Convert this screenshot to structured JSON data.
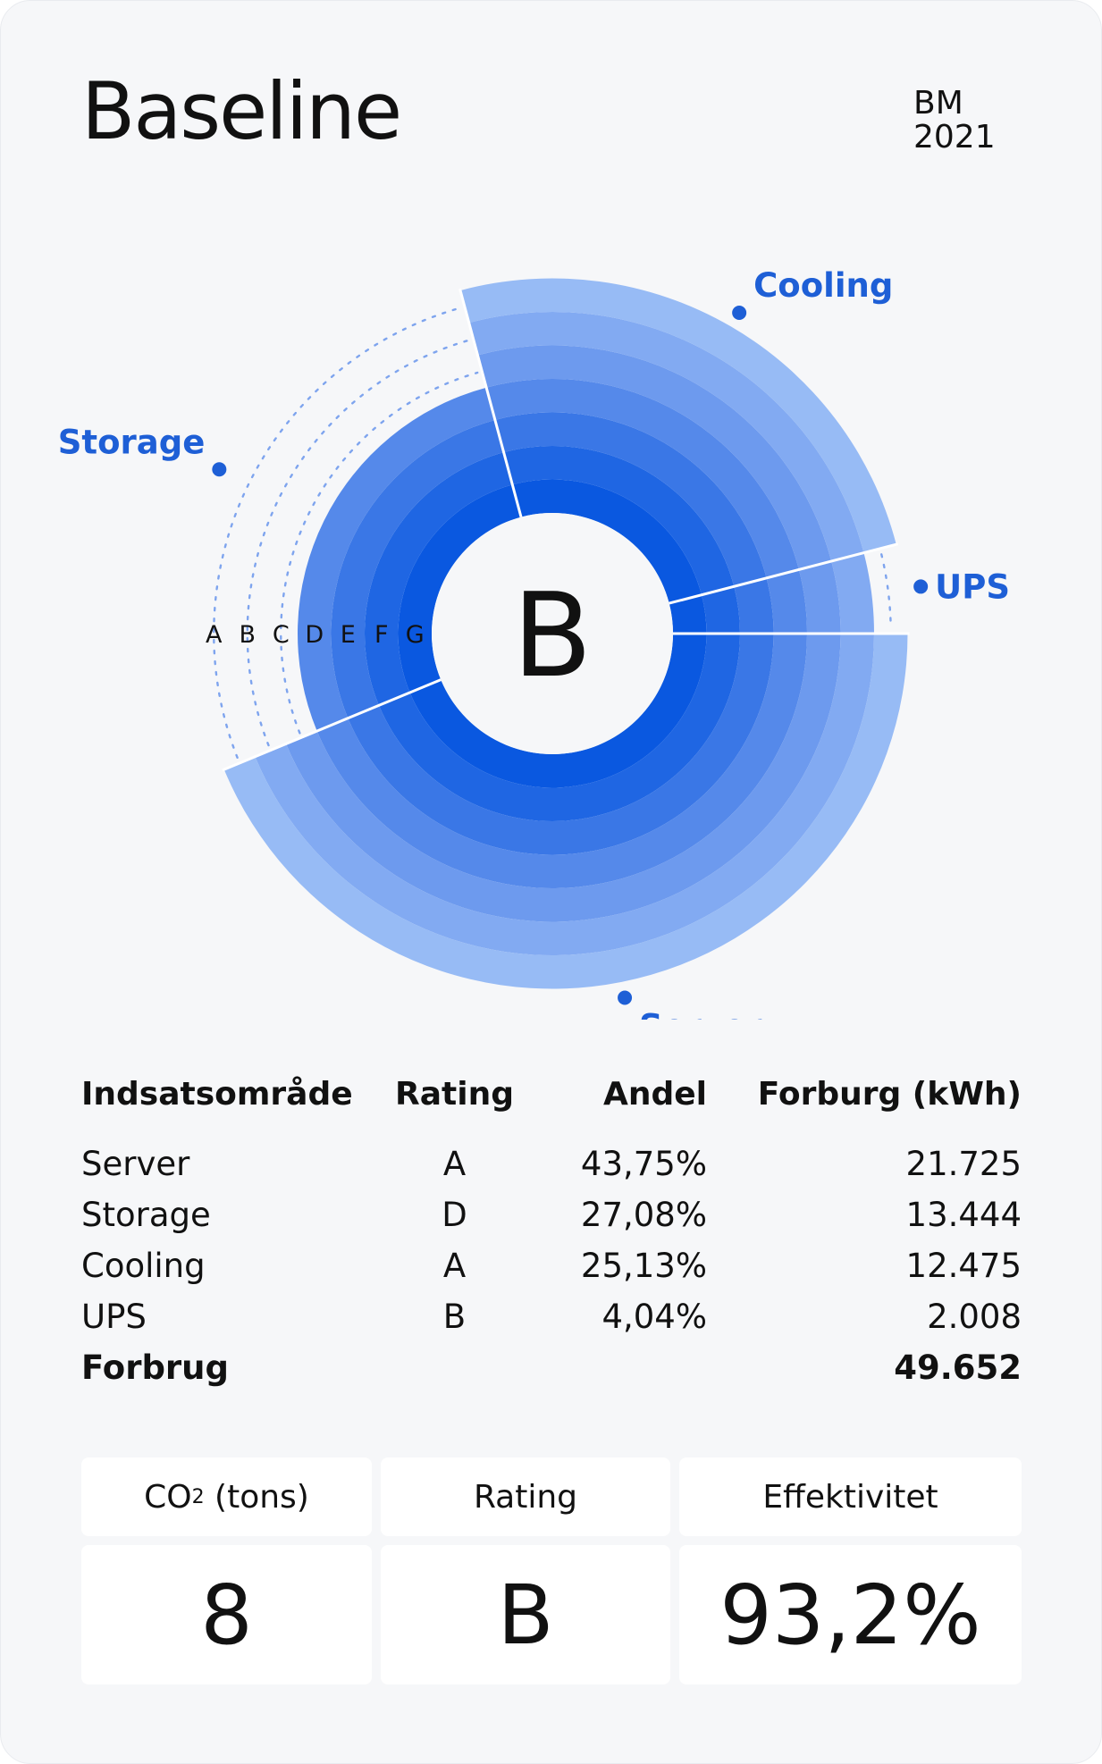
{
  "header": {
    "title": "Baseline",
    "code_line1": "BM",
    "code_line2": "2021"
  },
  "chart_data": {
    "type": "radial-bar",
    "center_rating": "B",
    "rating_scale": [
      "A",
      "B",
      "C",
      "D",
      "E",
      "F",
      "G"
    ],
    "segments": [
      {
        "name": "Server",
        "rating": "A",
        "share": 43.75
      },
      {
        "name": "Storage",
        "rating": "D",
        "share": 27.08
      },
      {
        "name": "Cooling",
        "rating": "A",
        "share": 25.13
      },
      {
        "name": "UPS",
        "rating": "B",
        "share": 4.04
      }
    ],
    "colors": {
      "label": "#1e5fd6",
      "rings": [
        "#97bbf5",
        "#82aaf2",
        "#6d9aee",
        "#5589ea",
        "#3a77e6",
        "#1f66e3",
        "#0a58e0"
      ]
    }
  },
  "table": {
    "headers": {
      "area": "Indsatsområde",
      "rating": "Rating",
      "share": "Andel",
      "usage": "Forburg (kWh)"
    },
    "rows": [
      {
        "area": "Server",
        "rating": "A",
        "share": "43,75%",
        "usage": "21.725"
      },
      {
        "area": "Storage",
        "rating": "D",
        "share": "27,08%",
        "usage": "13.444"
      },
      {
        "area": "Cooling",
        "rating": "A",
        "share": "25,13%",
        "usage": "12.475"
      },
      {
        "area": "UPS",
        "rating": "B",
        "share": "4,04%",
        "usage": "2.008"
      }
    ],
    "total": {
      "label": "Forbrug",
      "usage": "49.652"
    }
  },
  "summary": {
    "co2_label_prefix": "CO",
    "co2_label_sub": "2",
    "co2_label_suffix": " (tons)",
    "co2_value": "8",
    "rating_label": "Rating",
    "rating_value": "B",
    "efficiency_label": "Effektivitet",
    "efficiency_value": "93,2%"
  }
}
